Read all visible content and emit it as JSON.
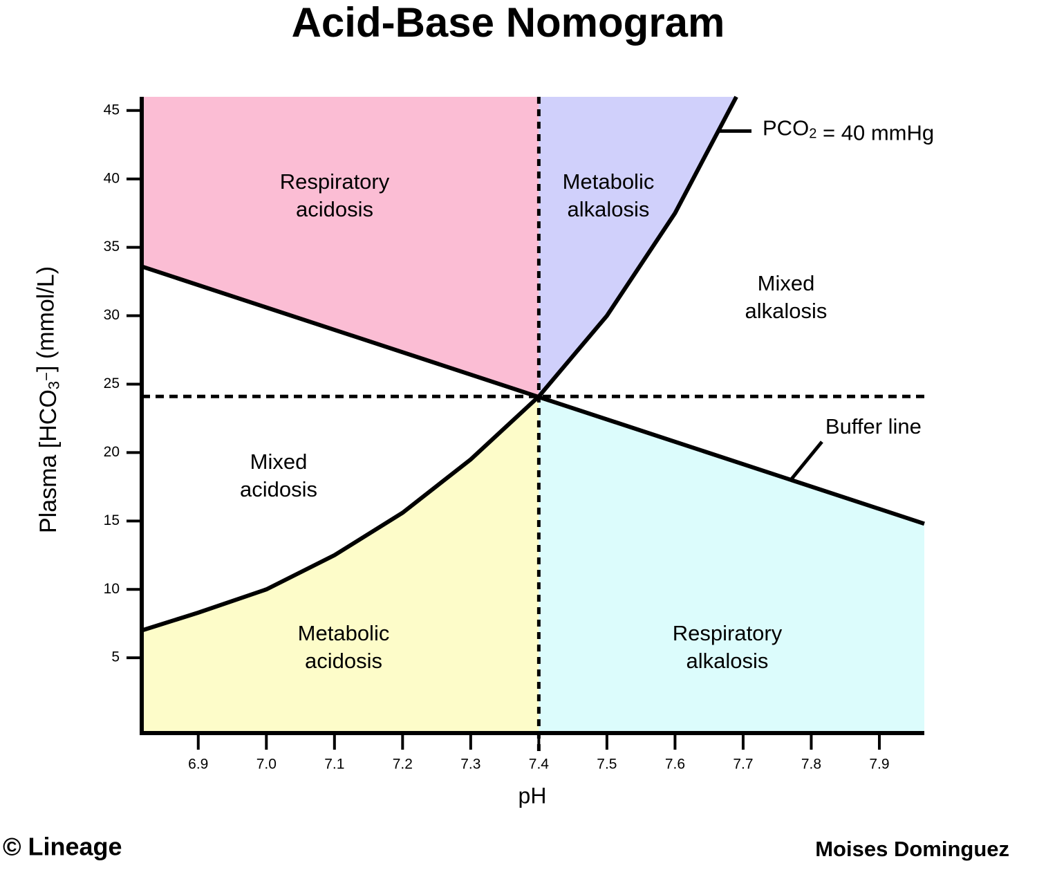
{
  "chart_data": {
    "type": "line",
    "title": "Acid-Base Nomogram",
    "x_label": "pH",
    "y_label": "Plasma [HCO3−] (mmol/L)",
    "xlim": [
      6.817,
      7.966
    ],
    "ylim": [
      -0.5,
      46
    ],
    "xticks": [
      6.9,
      {
        "value": 7,
        "label": "7.0"
      },
      7.1,
      7.2,
      7.3,
      7.4,
      7.5,
      7.6,
      7.7,
      7.8,
      7.9
    ],
    "yticks": [
      5,
      10,
      15,
      20,
      25,
      30,
      35,
      40,
      45
    ],
    "reference_x": 7.4,
    "reference_y": 24.1,
    "series": [
      {
        "name": "Buffer line",
        "color": "#000000",
        "x": [
          6.817,
          7.966
        ],
        "values": [
          33.6,
          14.8
        ]
      },
      {
        "name": "PCO2 = 40 mmHg",
        "color": "#000000",
        "x": [
          6.817,
          6.9,
          7.0,
          7.1,
          7.2,
          7.3,
          7.4,
          7.5,
          7.6,
          7.69
        ],
        "values": [
          7.0,
          8.3,
          10.0,
          12.5,
          15.6,
          19.5,
          24.1,
          30.0,
          37.5,
          46
        ]
      }
    ],
    "regions": [
      {
        "lines": [
          "Respiratory",
          "acidosis"
        ],
        "color": "#fbbdd4"
      },
      {
        "lines": [
          "Metabolic",
          "alkalosis"
        ],
        "color": "#d0d0fb"
      },
      {
        "lines": [
          "Mixed",
          "alkalosis"
        ]
      },
      {
        "lines": [
          "Mixed",
          "acidosis"
        ]
      },
      {
        "lines": [
          "Metabolic",
          "acidosis"
        ],
        "color": "#fdfcc9"
      },
      {
        "lines": [
          "Respiratory",
          "alkalosis"
        ],
        "color": "#dcfcfc"
      }
    ],
    "credits": [
      "© Lineage",
      "Moises Dominguez"
    ]
  }
}
